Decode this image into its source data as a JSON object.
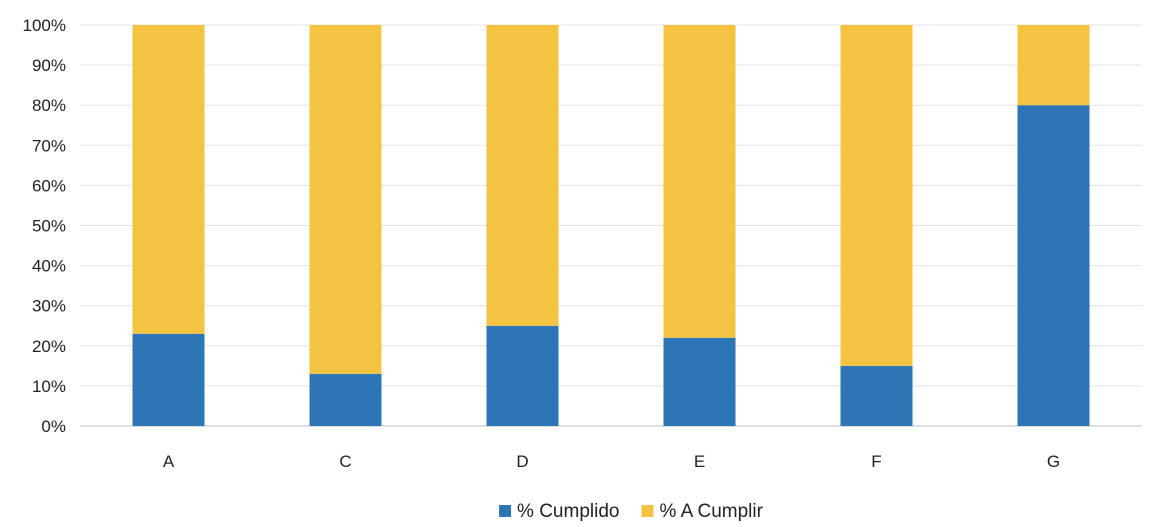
{
  "chart_data": {
    "type": "bar",
    "stacked": true,
    "categories": [
      "A",
      "C",
      "D",
      "E",
      "F",
      "G"
    ],
    "series": [
      {
        "name": "% Cumplido",
        "color": "#2E75B6",
        "values": [
          23,
          13,
          25,
          22,
          15,
          80
        ]
      },
      {
        "name": "% A Cumplir",
        "color": "#F5C342",
        "values": [
          77,
          87,
          75,
          78,
          85,
          20
        ]
      }
    ],
    "ylim": [
      0,
      100
    ],
    "yticks": [
      "0%",
      "10%",
      "20%",
      "30%",
      "40%",
      "50%",
      "60%",
      "70%",
      "80%",
      "90%",
      "100%"
    ],
    "grid": true,
    "legend": "bottom",
    "title": "",
    "xlabel": "",
    "ylabel": ""
  }
}
